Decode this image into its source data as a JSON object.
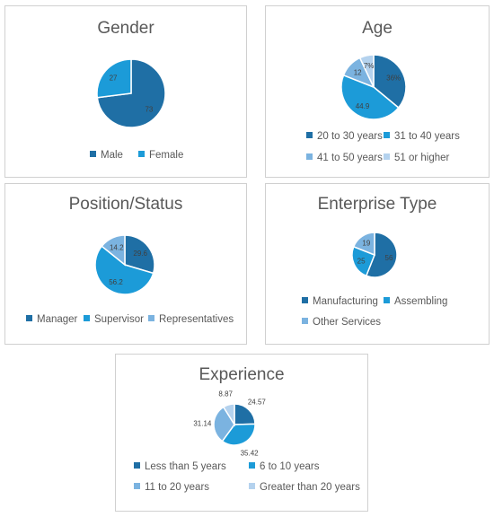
{
  "colors": [
    "#1f6fa5",
    "#1c9bd8",
    "#7bb3e0",
    "#b4d2ee"
  ],
  "chart_data": [
    {
      "type": "pie",
      "title": "Gender",
      "categories": [
        "Male",
        "Female"
      ],
      "values": [
        73,
        27
      ],
      "labels": [
        "73",
        "27"
      ],
      "legend_position": "bottom"
    },
    {
      "type": "pie",
      "title": "Age",
      "categories": [
        "20 to 30 years",
        "31 to 40 years",
        "41 to 50 years",
        "51 or higher"
      ],
      "values": [
        36,
        44.9,
        12,
        7
      ],
      "labels": [
        "36%",
        "44.9",
        "12",
        "7%"
      ],
      "legend_position": "bottom"
    },
    {
      "type": "pie",
      "title": "Position/Status",
      "categories": [
        "Manager",
        "Supervisor",
        "Representatives"
      ],
      "values": [
        29.6,
        56.2,
        14.2
      ],
      "labels": [
        "29.6",
        "56.2",
        "14.2"
      ],
      "legend_position": "bottom"
    },
    {
      "type": "pie",
      "title": "Enterprise Type",
      "categories": [
        "Manufacturing",
        "Assembling",
        "Other Services"
      ],
      "values": [
        56,
        25,
        19
      ],
      "labels": [
        "56",
        "25",
        "19"
      ],
      "legend_position": "bottom"
    },
    {
      "type": "pie",
      "title": "Experience",
      "categories": [
        "Less than 5 years",
        "6 to 10 years",
        "11 to 20 years",
        "Greater than 20 years"
      ],
      "values": [
        24.57,
        35.42,
        31.14,
        8.87
      ],
      "labels": [
        "24.57",
        "35.42",
        "31.14",
        "8.87"
      ],
      "legend_position": "bottom"
    }
  ]
}
